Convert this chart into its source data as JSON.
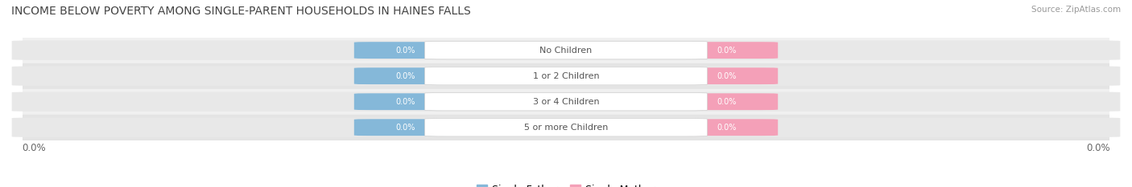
{
  "title": "INCOME BELOW POVERTY AMONG SINGLE-PARENT HOUSEHOLDS IN HAINES FALLS",
  "source": "Source: ZipAtlas.com",
  "categories": [
    "No Children",
    "1 or 2 Children",
    "3 or 4 Children",
    "5 or more Children"
  ],
  "father_values": [
    0.0,
    0.0,
    0.0,
    0.0
  ],
  "mother_values": [
    0.0,
    0.0,
    0.0,
    0.0
  ],
  "father_color": "#85b8d9",
  "mother_color": "#f4a0b8",
  "row_bg_colors": [
    "#f0f0f0",
    "#e4e4e4"
  ],
  "bar_bg_color": "#e8e8e8",
  "axis_label_left": "0.0%",
  "axis_label_right": "0.0%",
  "title_fontsize": 10,
  "source_fontsize": 7.5,
  "legend_fontsize": 9,
  "background_color": "#ffffff",
  "center_label_color": "#555555",
  "value_label_color": "#ffffff"
}
